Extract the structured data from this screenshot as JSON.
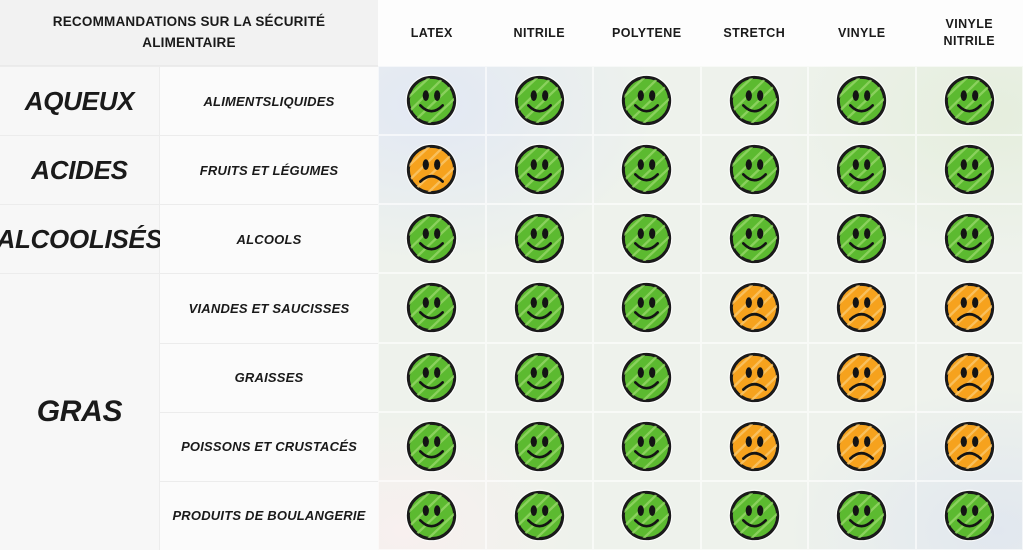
{
  "chart_data": {
    "type": "table",
    "title": "RECOMMANDATIONS SUR LA SÉCURITÉ ALIMENTAIRE",
    "columns": [
      "LATEX",
      "NITRILE",
      "POLYTENE",
      "STRETCH",
      "VINYLE",
      "VINYLE NITRILE"
    ],
    "row_groups": [
      {
        "category": "AQUEUX",
        "foods": [
          {
            "name": "ALIMENTSLIQUIDES",
            "ratings": [
              "happy",
              "happy",
              "happy",
              "happy",
              "happy",
              "happy"
            ]
          }
        ]
      },
      {
        "category": "ACIDES",
        "foods": [
          {
            "name": "FRUITS ET LÉGUMES",
            "ratings": [
              "sad",
              "happy",
              "happy",
              "happy",
              "happy",
              "happy"
            ]
          }
        ]
      },
      {
        "category": "ALCOOLISÉS",
        "foods": [
          {
            "name": "ALCOOLS",
            "ratings": [
              "happy",
              "happy",
              "happy",
              "happy",
              "happy",
              "happy"
            ]
          }
        ]
      },
      {
        "category": "GRAS",
        "foods": [
          {
            "name": "VIANDES ET SAUCISSES",
            "ratings": [
              "happy",
              "happy",
              "happy",
              "sad",
              "sad",
              "sad"
            ]
          },
          {
            "name": "GRAISSES",
            "ratings": [
              "happy",
              "happy",
              "happy",
              "sad",
              "sad",
              "sad"
            ]
          },
          {
            "name": "POISSONS ET CRUSTACÉS",
            "ratings": [
              "happy",
              "happy",
              "happy",
              "sad",
              "sad",
              "sad"
            ]
          },
          {
            "name": "PRODUITS DE BOULANGERIE",
            "ratings": [
              "happy",
              "happy",
              "happy",
              "happy",
              "happy",
              "happy"
            ]
          }
        ]
      }
    ],
    "rating_colors": {
      "happy": "#5cba30",
      "happy_streak": "#96d869",
      "sad": "#f6a21d",
      "sad_streak": "#fac86e",
      "outline": "#1a1a1a"
    }
  }
}
